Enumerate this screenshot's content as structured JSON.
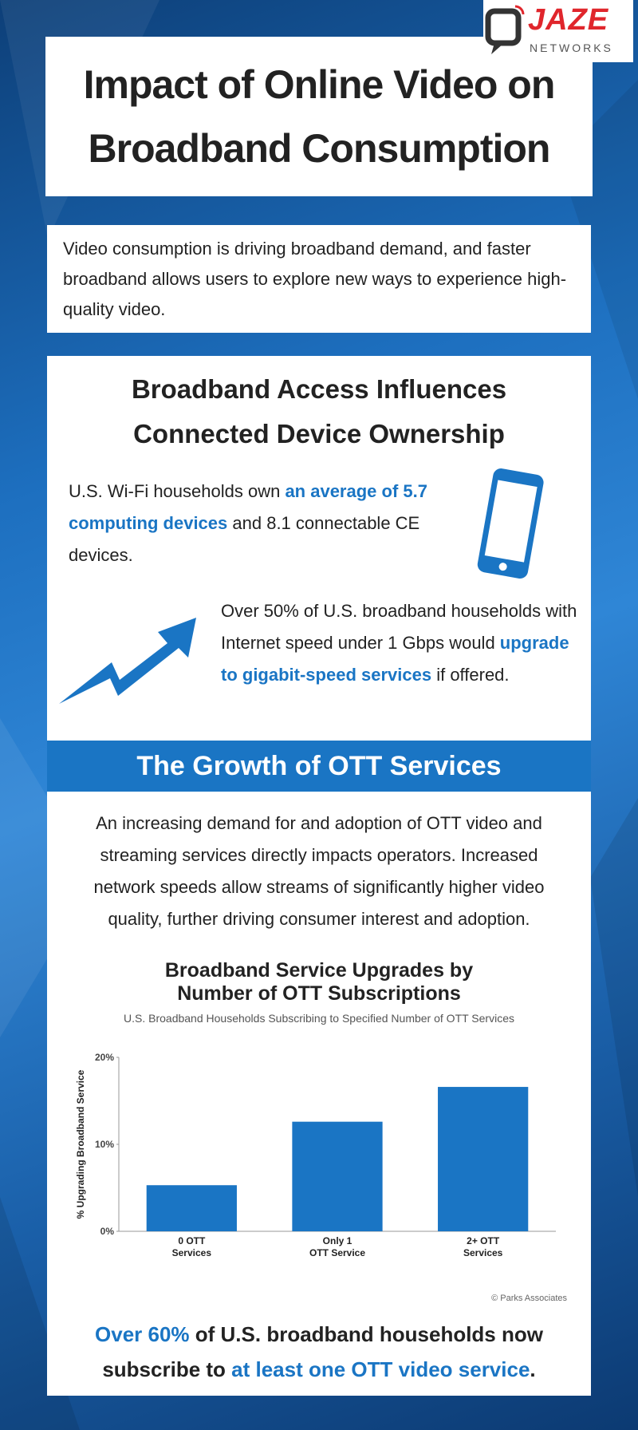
{
  "header": {
    "title": "Impact of Online Video on Broadband Consumption",
    "logo": {
      "name": "JAZE",
      "tagline": "NETWORKS"
    }
  },
  "intro": "Video consumption is driving broadband demand, and faster broadband allows users to explore new ways to experience high-quality video.",
  "device_section": {
    "heading": "Broadband Access Influences Connected Device Ownership",
    "devices": {
      "parts": [
        "U.S. Wi-Fi households own ",
        "an average of 5.7 computing devices",
        " and 8.1 connectable CE devices."
      ]
    },
    "gigabit": {
      "parts": [
        "Over 50% of U.S. broadband households with Internet speed under 1 Gbps would ",
        "upgrade to gigabit-speed services",
        " if offered."
      ]
    }
  },
  "ott_section": {
    "heading": "The Growth of OTT Services",
    "text": "An increasing demand for and adoption of OTT video and streaming services directly impacts operators. Increased network speeds allow streams of significantly higher video quality, further driving consumer interest and adoption."
  },
  "chart_data": {
    "type": "bar",
    "title": [
      "Broadband Service Upgrades by",
      "Number of OTT Subscriptions"
    ],
    "subtitle": "U.S. Broadband Households Subscribing to Specified Number of OTT Services",
    "y_label": "% Upgrading Broadband Service",
    "categories": [
      [
        "0 OTT",
        "Services"
      ],
      [
        "Only 1",
        "OTT Service"
      ],
      [
        "2+ OTT",
        "Services"
      ]
    ],
    "values": [
      5.3,
      12.6,
      16.6
    ],
    "color": "#1a75c4",
    "ylim": [
      0,
      20
    ],
    "yticks": [
      {
        "value": 0,
        "label": "0%"
      },
      {
        "value": 10,
        "label": "10%"
      },
      {
        "value": 20,
        "label": "20%"
      }
    ],
    "grid": false,
    "source": "© Parks Associates"
  },
  "summary": {
    "parts": [
      "Over 60%",
      " of U.S. broadband households now subscribe to ",
      "at least one OTT video service",
      "."
    ]
  }
}
